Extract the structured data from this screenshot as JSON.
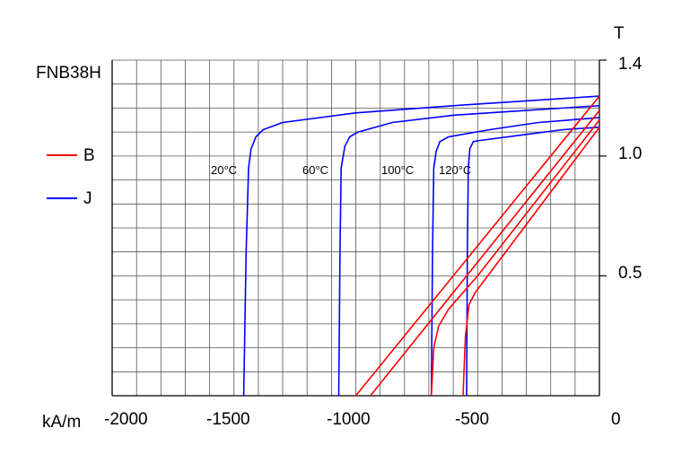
{
  "chart_data": {
    "type": "line",
    "title": "FNB38H",
    "ylabel": "T",
    "xlabel": "kA/m",
    "xlim": [
      -2000,
      0
    ],
    "ylim": [
      0,
      1.4
    ],
    "x_ticks": [
      "-2000",
      "-1500",
      "-1000",
      "-500",
      "0"
    ],
    "y_ticks": [
      "1.4",
      "1.0",
      "0.5"
    ],
    "grid": true,
    "grid_step": {
      "x": 100,
      "y": 0.1
    },
    "legend": [
      {
        "label": "B",
        "color": "#ff0000"
      },
      {
        "label": "J",
        "color": "#0000ff"
      }
    ],
    "annotations": [
      "20°C",
      "60°C",
      "100°C",
      "120°C"
    ],
    "series": [
      {
        "curve": "J",
        "temp": "20°C",
        "color": "#0000ff",
        "points": [
          [
            -1460,
            0
          ],
          [
            -1450,
            0.6
          ],
          [
            -1440,
            0.95
          ],
          [
            -1430,
            1.03
          ],
          [
            -1410,
            1.08
          ],
          [
            -1380,
            1.11
          ],
          [
            -1300,
            1.14
          ],
          [
            -1000,
            1.18
          ],
          [
            -600,
            1.21
          ],
          [
            -300,
            1.23
          ],
          [
            0,
            1.25
          ]
        ]
      },
      {
        "curve": "J",
        "temp": "60°C",
        "color": "#0000ff",
        "points": [
          [
            -1070,
            0
          ],
          [
            -1065,
            0.6
          ],
          [
            -1060,
            0.95
          ],
          [
            -1045,
            1.04
          ],
          [
            -1025,
            1.08
          ],
          [
            -990,
            1.1
          ],
          [
            -850,
            1.14
          ],
          [
            -600,
            1.17
          ],
          [
            -300,
            1.19
          ],
          [
            0,
            1.21
          ]
        ]
      },
      {
        "curve": "J",
        "temp": "100°C",
        "color": "#0000ff",
        "points": [
          [
            -690,
            0
          ],
          [
            -685,
            0.6
          ],
          [
            -680,
            0.95
          ],
          [
            -670,
            1.02
          ],
          [
            -655,
            1.06
          ],
          [
            -620,
            1.08
          ],
          [
            -450,
            1.11
          ],
          [
            -250,
            1.14
          ],
          [
            0,
            1.16
          ]
        ]
      },
      {
        "curve": "J",
        "temp": "120°C",
        "color": "#0000ff",
        "points": [
          [
            -545,
            0
          ],
          [
            -542,
            0.6
          ],
          [
            -538,
            0.95
          ],
          [
            -532,
            1.03
          ],
          [
            -518,
            1.06
          ],
          [
            -490,
            1.065
          ],
          [
            -300,
            1.09
          ],
          [
            -150,
            1.11
          ],
          [
            0,
            1.12
          ]
        ]
      },
      {
        "curve": "B",
        "temp": "20°C",
        "color": "#ff0000",
        "points": [
          [
            -1000,
            0
          ],
          [
            0,
            1.25
          ]
        ]
      },
      {
        "curve": "B",
        "temp": "60°C",
        "color": "#ff0000",
        "points": [
          [
            -940,
            0
          ],
          [
            0,
            1.19
          ]
        ]
      },
      {
        "curve": "B",
        "temp": "100°C",
        "color": "#ff0000",
        "points": [
          [
            -690,
            0
          ],
          [
            -680,
            0.2
          ],
          [
            -660,
            0.29
          ],
          [
            -620,
            0.36
          ],
          [
            -500,
            0.5
          ],
          [
            0,
            1.15
          ]
        ]
      },
      {
        "curve": "B",
        "temp": "120°C",
        "color": "#ff0000",
        "points": [
          [
            -560,
            0
          ],
          [
            -550,
            0.25
          ],
          [
            -535,
            0.38
          ],
          [
            -510,
            0.43
          ],
          [
            0,
            1.12
          ]
        ]
      }
    ]
  }
}
